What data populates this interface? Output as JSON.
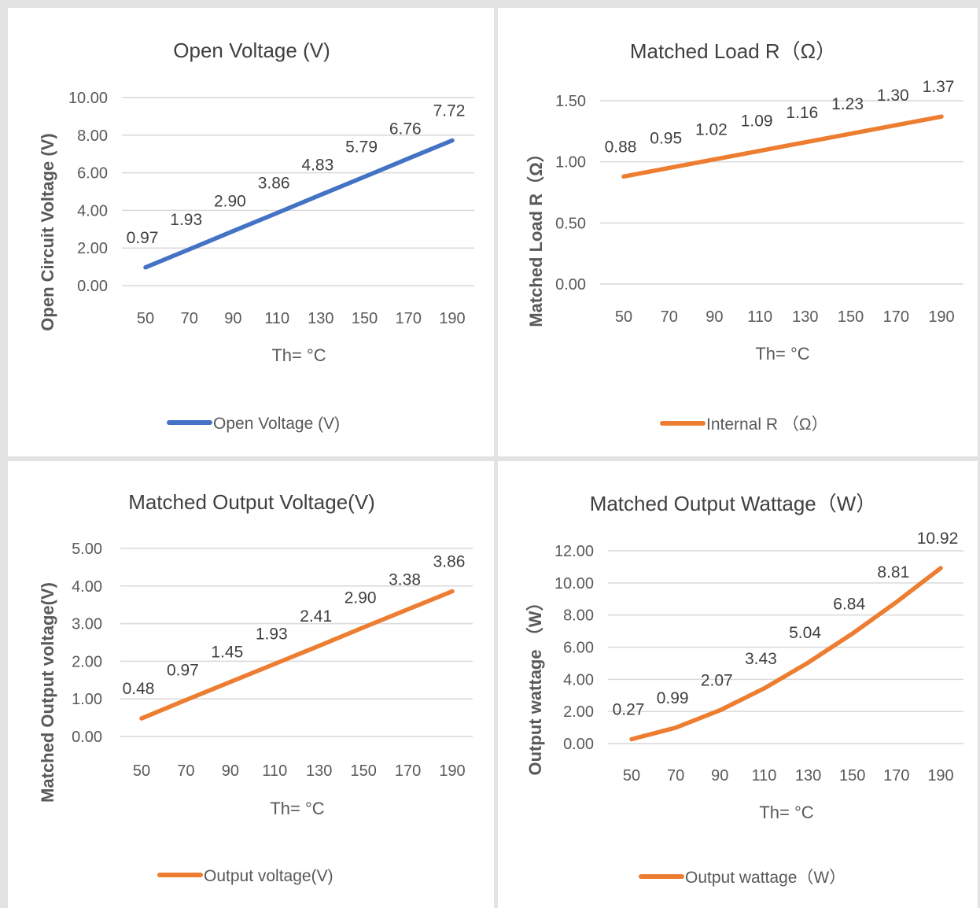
{
  "chart_data": [
    {
      "type": "line",
      "title": "Open Voltage (V)",
      "xlabel": "Th= °C",
      "ylabel": "Open Circuit Voltage (V)",
      "categories": [
        "50",
        "70",
        "90",
        "110",
        "130",
        "150",
        "170",
        "190"
      ],
      "yticks": [
        "0.00",
        "2.00",
        "4.00",
        "6.00",
        "8.00",
        "10.00"
      ],
      "ylim": [
        0,
        10
      ],
      "grid": true,
      "legend_position": "bottom",
      "color": "#4472C4",
      "series": [
        {
          "name": "Open Voltage (V)",
          "values": [
            0.97,
            1.93,
            2.9,
            3.86,
            4.83,
            5.79,
            6.76,
            7.72
          ],
          "labels": [
            "0.97",
            "1.93",
            "2.90",
            "3.86",
            "4.83",
            "5.79",
            "6.76",
            "7.72"
          ]
        }
      ]
    },
    {
      "type": "line",
      "title": "Matched Load R（Ω）",
      "xlabel": "Th= °C",
      "ylabel": "Matched Load R（Ω）",
      "categories": [
        "50",
        "70",
        "90",
        "110",
        "130",
        "150",
        "170",
        "190"
      ],
      "yticks": [
        "0.00",
        "0.50",
        "1.00",
        "1.50"
      ],
      "ylim": [
        0,
        1.5
      ],
      "grid": true,
      "legend_position": "bottom",
      "color": "#ED7D31",
      "series": [
        {
          "name": "Internal R （Ω）",
          "values": [
            0.88,
            0.95,
            1.02,
            1.09,
            1.16,
            1.23,
            1.3,
            1.37
          ],
          "labels": [
            "0.88",
            "0.95",
            "1.02",
            "1.09",
            "1.16",
            "1.23",
            "1.30",
            "1.37"
          ]
        }
      ]
    },
    {
      "type": "line",
      "title": "Matched Output Voltage(V)",
      "xlabel": "Th= °C",
      "ylabel": "Matched Output voltage(V)",
      "categories": [
        "50",
        "70",
        "90",
        "110",
        "130",
        "150",
        "170",
        "190"
      ],
      "yticks": [
        "0.00",
        "1.00",
        "2.00",
        "3.00",
        "4.00",
        "5.00"
      ],
      "ylim": [
        0,
        5
      ],
      "grid": true,
      "legend_position": "bottom",
      "color": "#ED7D31",
      "series": [
        {
          "name": "Output voltage(V)",
          "values": [
            0.48,
            0.97,
            1.45,
            1.93,
            2.41,
            2.9,
            3.38,
            3.86
          ],
          "labels": [
            "0.48",
            "0.97",
            "1.45",
            "1.93",
            "2.41",
            "2.90",
            "3.38",
            "3.86"
          ]
        }
      ]
    },
    {
      "type": "line",
      "title": "Matched Output Wattage（W）",
      "xlabel": "Th= °C",
      "ylabel": "Output wattage （W）",
      "categories": [
        "50",
        "70",
        "90",
        "110",
        "130",
        "150",
        "170",
        "190"
      ],
      "yticks": [
        "0.00",
        "2.00",
        "4.00",
        "6.00",
        "8.00",
        "10.00",
        "12.00"
      ],
      "ylim": [
        0,
        12
      ],
      "grid": true,
      "legend_position": "bottom",
      "color": "#ED7D31",
      "series": [
        {
          "name": "Output wattage（W）",
          "values": [
            0.27,
            0.99,
            2.07,
            3.43,
            5.04,
            6.84,
            8.81,
            10.92
          ],
          "labels": [
            "0.27",
            "0.99",
            "2.07",
            "3.43",
            "5.04",
            "6.84",
            "8.81",
            "10.92"
          ]
        }
      ]
    }
  ]
}
